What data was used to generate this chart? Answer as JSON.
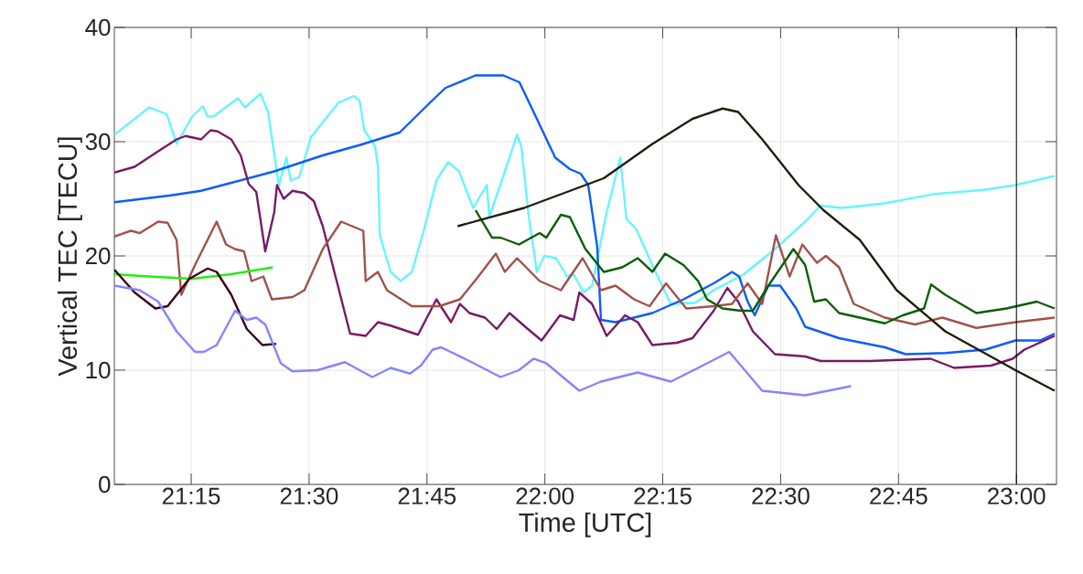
{
  "chart_data": {
    "type": "line",
    "xlabel": "Time [UTC]",
    "ylabel": "Vertical TEC [TECU]",
    "xlim": [
      21.087,
      23.085
    ],
    "ylim": [
      0,
      40
    ],
    "xticks": [
      {
        "value": 21.25,
        "label": "21:15"
      },
      {
        "value": 21.5,
        "label": "21:30"
      },
      {
        "value": 21.75,
        "label": "21:45"
      },
      {
        "value": 22.0,
        "label": "22:00"
      },
      {
        "value": 22.25,
        "label": "22:15"
      },
      {
        "value": 22.5,
        "label": "22:30"
      },
      {
        "value": 22.75,
        "label": "22:45"
      },
      {
        "value": 23.0,
        "label": "23:00"
      }
    ],
    "yticks": [
      0,
      10,
      20,
      30,
      40
    ],
    "grid": true,
    "ref_lines": [
      {
        "axis": "x",
        "value": 23.0,
        "color": "#000000"
      }
    ],
    "series": [
      {
        "color": "#66f5ff",
        "x": [
          21.087,
          21.161,
          21.198,
          21.219,
          21.252,
          21.275,
          21.285,
          21.297,
          21.349,
          21.364,
          21.397,
          21.413,
          21.43,
          21.436,
          21.452,
          21.461,
          21.479,
          21.504,
          21.562,
          21.595,
          21.607,
          21.617,
          21.64,
          21.646,
          21.65,
          21.673,
          21.694,
          21.718,
          21.743,
          21.77,
          21.795,
          21.818,
          21.848,
          21.877,
          21.882,
          21.912,
          21.941,
          21.95,
          21.966,
          21.983,
          21.999,
          22.024,
          22.047,
          22.061,
          22.082,
          22.1,
          22.131,
          22.16,
          22.173,
          22.193,
          22.228,
          22.267,
          22.319,
          22.358,
          22.422,
          22.488,
          22.552,
          22.585,
          22.629,
          22.721,
          22.823,
          22.934,
          22.998,
          23.081
        ],
        "values": [
          30.6,
          33.0,
          32.4,
          29.8,
          32.2,
          33.1,
          32.2,
          32.2,
          33.8,
          33.0,
          34.2,
          32.6,
          27.8,
          26.2,
          28.6,
          26.6,
          26.9,
          30.4,
          33.4,
          34.0,
          33.6,
          31.0,
          29.6,
          27.8,
          21.8,
          18.6,
          17.8,
          18.6,
          22.2,
          26.6,
          28.2,
          27.4,
          24.2,
          26.2,
          23.4,
          27.0,
          30.6,
          29.6,
          23.4,
          18.6,
          20.0,
          19.8,
          18.2,
          18.4,
          16.8,
          17.4,
          23.8,
          28.6,
          23.2,
          22.4,
          19.2,
          15.8,
          15.9,
          17.0,
          18.4,
          20.6,
          23.0,
          24.4,
          24.2,
          24.6,
          25.4,
          25.8,
          26.2,
          27.0
        ]
      },
      {
        "color": "#0a5cff",
        "x": [
          21.087,
          21.207,
          21.271,
          21.335,
          21.426,
          21.529,
          21.607,
          21.646,
          21.692,
          21.756,
          21.789,
          21.853,
          21.912,
          21.946,
          21.983,
          22.022,
          22.053,
          22.076,
          22.092,
          22.111,
          22.119,
          22.15,
          22.228,
          22.294,
          22.358,
          22.397,
          22.412,
          22.43,
          22.445,
          22.474,
          22.499,
          22.533,
          22.552,
          22.624,
          22.721,
          22.765,
          22.849,
          22.934,
          22.998,
          23.05,
          23.081
        ],
        "values": [
          24.7,
          25.3,
          25.7,
          26.4,
          27.4,
          28.8,
          29.7,
          30.2,
          30.8,
          33.4,
          34.7,
          35.8,
          35.8,
          35.2,
          32.0,
          28.6,
          27.6,
          27.2,
          26.2,
          20.8,
          14.4,
          14.2,
          15.0,
          16.2,
          17.6,
          18.6,
          18.2,
          16.0,
          14.8,
          17.4,
          17.4,
          15.4,
          13.8,
          12.8,
          12.0,
          11.4,
          11.5,
          11.8,
          12.6,
          12.6,
          13.2
        ]
      },
      {
        "color": "#771a66",
        "x": [
          21.087,
          21.13,
          21.174,
          21.219,
          21.238,
          21.271,
          21.291,
          21.306,
          21.335,
          21.355,
          21.372,
          21.388,
          21.407,
          21.426,
          21.432,
          21.446,
          21.465,
          21.49,
          21.51,
          21.529,
          21.556,
          21.587,
          21.62,
          21.646,
          21.673,
          21.731,
          21.77,
          21.801,
          21.82,
          21.84,
          21.873,
          21.898,
          21.925,
          21.964,
          21.993,
          22.032,
          22.061,
          22.073,
          22.1,
          22.131,
          22.17,
          22.197,
          22.228,
          22.28,
          22.313,
          22.358,
          22.387,
          22.41,
          22.441,
          22.488,
          22.552,
          22.585,
          22.688,
          22.818,
          22.868,
          22.946,
          22.992,
          23.017,
          23.081
        ],
        "values": [
          27.3,
          27.8,
          29.0,
          30.2,
          30.5,
          30.2,
          31.0,
          30.9,
          30.2,
          28.8,
          26.3,
          25.6,
          20.4,
          23.8,
          26.2,
          25.0,
          25.7,
          25.5,
          24.8,
          22.6,
          18.2,
          13.2,
          13.0,
          14.2,
          13.9,
          13.1,
          16.2,
          14.2,
          15.8,
          15.0,
          14.6,
          13.6,
          15.0,
          13.6,
          12.6,
          14.8,
          14.4,
          16.8,
          15.8,
          13.0,
          14.8,
          14.2,
          12.2,
          12.4,
          12.8,
          15.2,
          17.2,
          16.0,
          13.4,
          11.4,
          11.2,
          10.8,
          10.8,
          11.0,
          10.2,
          10.4,
          11.0,
          11.8,
          13.0
        ]
      },
      {
        "color": "#a0524a",
        "x": [
          21.087,
          21.122,
          21.141,
          21.18,
          21.2,
          21.219,
          21.229,
          21.258,
          21.304,
          21.324,
          21.343,
          21.362,
          21.378,
          21.403,
          21.421,
          21.465,
          21.49,
          21.529,
          21.568,
          21.615,
          21.62,
          21.646,
          21.665,
          21.718,
          21.776,
          21.82,
          21.859,
          21.896,
          21.915,
          21.941,
          21.989,
          22.034,
          22.08,
          22.119,
          22.15,
          22.189,
          22.222,
          22.257,
          22.3,
          22.358,
          22.397,
          22.43,
          22.461,
          22.49,
          22.519,
          22.546,
          22.577,
          22.596,
          22.624,
          22.655,
          22.721,
          22.785,
          22.843,
          22.915,
          22.998,
          23.081
        ],
        "values": [
          21.7,
          22.2,
          22.0,
          23.0,
          22.9,
          21.4,
          16.6,
          19.2,
          23.0,
          21.0,
          20.6,
          20.4,
          17.8,
          18.2,
          16.2,
          16.4,
          17.0,
          20.6,
          23.0,
          22.2,
          17.8,
          18.6,
          17.0,
          15.6,
          15.6,
          16.2,
          18.2,
          20.2,
          18.6,
          19.8,
          17.8,
          17.0,
          19.8,
          17.0,
          17.4,
          16.2,
          15.6,
          17.6,
          15.4,
          15.6,
          15.8,
          17.6,
          15.8,
          21.8,
          18.2,
          21.0,
          19.4,
          20.0,
          19.0,
          15.8,
          14.6,
          14.0,
          14.6,
          13.7,
          14.2,
          14.6
        ]
      },
      {
        "color": "#085f08",
        "x": [
          21.853,
          21.888,
          21.906,
          21.945,
          21.989,
          22.003,
          22.034,
          22.053,
          22.086,
          22.125,
          22.164,
          22.197,
          22.228,
          22.255,
          22.294,
          22.325,
          22.344,
          22.377,
          22.416,
          22.441,
          22.474,
          22.527,
          22.552,
          22.571,
          22.596,
          22.624,
          22.668,
          22.721,
          22.759,
          22.804,
          22.819,
          22.849,
          22.915,
          22.979,
          23.043,
          23.081
        ],
        "values": [
          24.0,
          21.6,
          21.6,
          21.0,
          22.0,
          21.6,
          23.6,
          23.4,
          20.6,
          18.6,
          19.0,
          19.8,
          18.6,
          20.2,
          19.2,
          17.8,
          16.2,
          15.4,
          15.2,
          15.2,
          17.4,
          20.6,
          19.2,
          16.0,
          16.2,
          15.0,
          14.6,
          14.1,
          14.8,
          15.4,
          17.5,
          16.6,
          15.0,
          15.4,
          16.0,
          15.4
        ]
      },
      {
        "color": "#1e1e0c",
        "x": [
          21.815,
          21.956,
          22.125,
          22.228,
          22.313,
          22.377,
          22.41,
          22.461,
          22.538,
          22.591,
          22.668,
          22.746,
          22.849,
          22.998,
          23.081
        ],
        "values": [
          22.6,
          24.2,
          26.8,
          29.8,
          32.0,
          32.9,
          32.6,
          30.2,
          26.2,
          24.0,
          21.4,
          17.0,
          13.4,
          10.0,
          8.2
        ]
      },
      {
        "color": "#22ee11",
        "x": [
          21.087,
          21.161,
          21.252,
          21.335,
          21.423
        ],
        "values": [
          18.4,
          18.2,
          18.0,
          18.4,
          19.0
        ]
      },
      {
        "color": "#3a0018",
        "x": [
          21.087,
          21.13,
          21.174,
          21.2,
          21.246,
          21.285,
          21.304,
          21.335,
          21.368,
          21.401,
          21.43
        ],
        "values": [
          18.8,
          16.8,
          15.4,
          15.6,
          18.0,
          18.9,
          18.6,
          16.6,
          13.6,
          12.2,
          12.3
        ]
      },
      {
        "color": "#8585ff",
        "x": [
          21.087,
          21.141,
          21.18,
          21.219,
          21.258,
          21.277,
          21.304,
          21.343,
          21.368,
          21.388,
          21.407,
          21.44,
          21.465,
          21.518,
          21.576,
          21.634,
          21.673,
          21.714,
          21.737,
          21.762,
          21.78,
          21.84,
          21.906,
          21.945,
          21.976,
          22.003,
          22.073,
          22.119,
          22.197,
          22.267,
          22.325,
          22.391,
          22.461,
          22.552,
          22.649
        ],
        "values": [
          17.4,
          17.0,
          16.0,
          13.4,
          11.6,
          11.6,
          12.2,
          15.2,
          14.4,
          14.6,
          14.0,
          10.6,
          9.9,
          10.0,
          10.7,
          9.4,
          10.2,
          9.7,
          10.4,
          11.8,
          12.0,
          10.8,
          9.4,
          10.0,
          11.0,
          10.6,
          8.2,
          9.0,
          9.8,
          9.0,
          10.2,
          11.6,
          8.2,
          7.8,
          8.6
        ]
      }
    ]
  }
}
